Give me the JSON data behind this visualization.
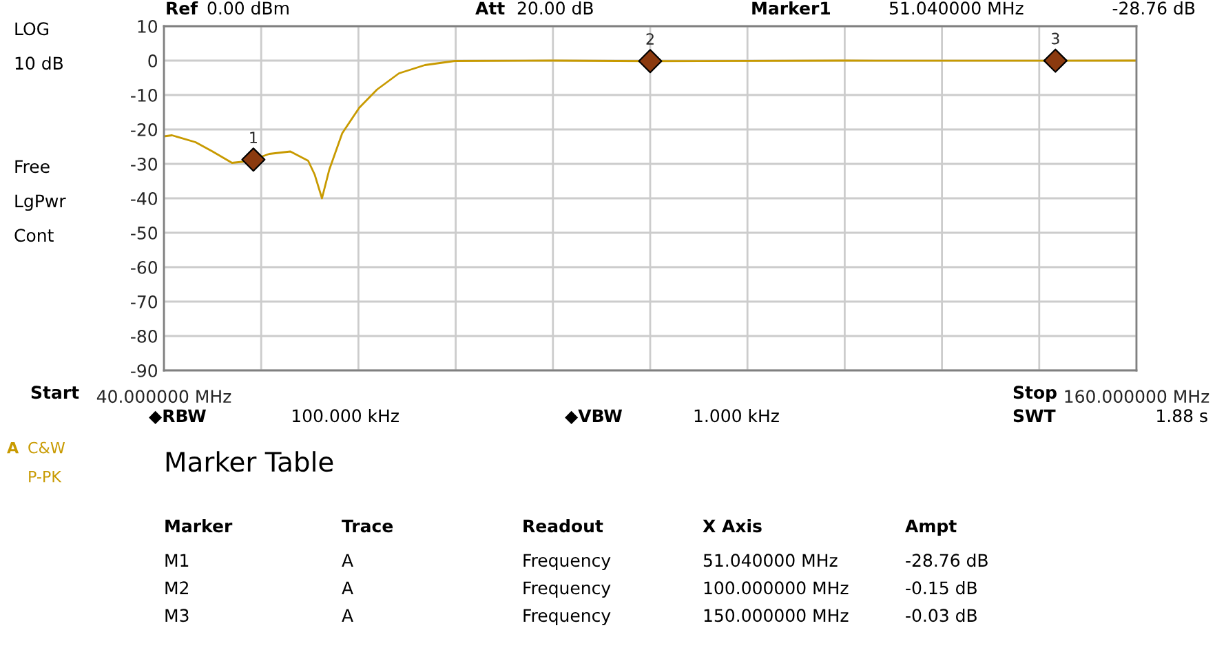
{
  "chart_data": {
    "type": "line",
    "xlim": [
      40,
      160
    ],
    "xticks": [
      {
        "value": 40,
        "label": "40.000000 MHz"
      },
      {
        "value": 52,
        "label": null
      },
      {
        "value": 64,
        "label": null
      },
      {
        "value": 76,
        "label": null
      },
      {
        "value": 88,
        "label": null
      },
      {
        "value": 100,
        "label": null
      },
      {
        "value": 112,
        "label": null
      },
      {
        "value": 124,
        "label": null
      },
      {
        "value": 136,
        "label": null
      },
      {
        "value": 148,
        "label": null
      },
      {
        "value": 160,
        "label": "160.000000 MHz"
      }
    ],
    "ylim": [
      -90,
      10
    ],
    "yticks": [
      10,
      0,
      -10,
      -20,
      -30,
      -40,
      -50,
      -60,
      -70,
      -80,
      -90
    ],
    "grid": true,
    "legend": false,
    "series": [
      {
        "color": "#c89a00",
        "marker": "none",
        "line_style": "solid",
        "x": [
          40,
          41,
          43.9,
          46,
          48.4,
          50,
          51.04,
          53,
          55.6,
          57.8,
          58.6,
          59.5,
          60.4,
          62,
          64.1,
          66.3,
          69,
          72.2,
          75.9,
          88,
          100,
          124,
          150,
          160
        ],
        "values": [
          -22,
          -21.7,
          -23.7,
          -26.4,
          -29.7,
          -29.3,
          -28.76,
          -27.1,
          -26.4,
          -29.1,
          -33.1,
          -40,
          -31.7,
          -21.1,
          -13.7,
          -8.4,
          -3.7,
          -1.3,
          -0.1,
          0,
          -0.15,
          0,
          -0.03,
          0
        ]
      },
      {
        "type": "scatter",
        "color": "#8b3a0f",
        "marker": "diamond",
        "x": [
          51.04,
          100,
          150
        ],
        "values": [
          -28.76,
          -0.15,
          -0.03
        ]
      }
    ],
    "annotations": [
      "Ref",
      "0.00 dBm",
      "Att",
      "20.00 dB",
      "Marker1",
      "51.040000 MHz",
      "-28.76 dB",
      "LOG",
      "10 dB",
      "Free",
      "LgPwr",
      "Cont",
      "A",
      "C&W",
      "P-PK",
      "Start",
      "Stop",
      "◆RBW",
      "100.000 kHz",
      "◆VBW",
      "1.000 kHz",
      "SWT",
      "1.88 s",
      "Marker Table",
      "Marker",
      "Trace",
      "Readout",
      "X Axis",
      "Ampt",
      "M1",
      "A",
      "Frequency",
      "51.040000 MHz",
      "-28.76 dB",
      "M2",
      "A",
      "Frequency",
      "100.000000 MHz",
      "-0.15 dB",
      "M3",
      "A",
      "Frequency",
      "150.000000 MHz",
      "-0.03 dB",
      {
        "text": "1",
        "x": 51.04,
        "y": -28.76
      },
      {
        "text": "2",
        "x": 100,
        "y": -0.15
      },
      {
        "text": "3",
        "x": 150,
        "y": -0.03
      }
    ]
  }
}
